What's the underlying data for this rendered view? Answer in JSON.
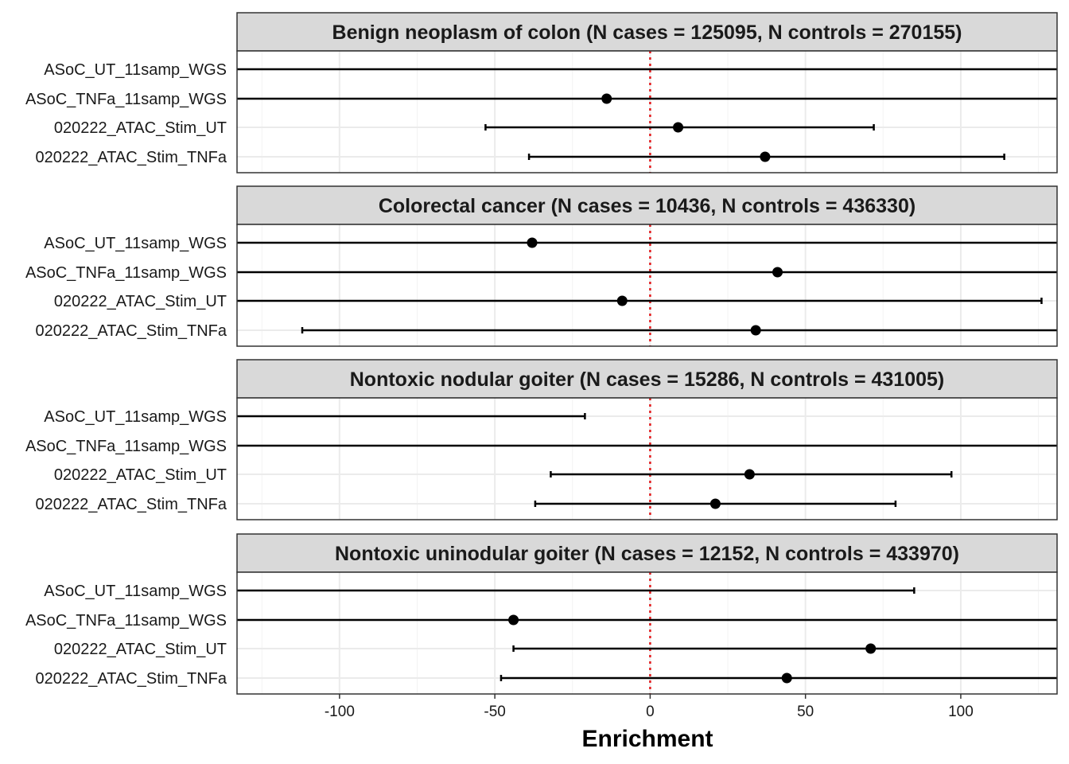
{
  "chart_data": {
    "type": "forest",
    "xlabel": "Enrichment",
    "xlim": [
      -133,
      131
    ],
    "xticks": [
      -100,
      -50,
      0,
      50,
      100
    ],
    "xtick_labels": [
      "-100",
      "-50",
      "0",
      "50",
      "100"
    ],
    "reference_line": 0,
    "rows": [
      "ASoC_UT_11samp_WGS",
      "ASoC_TNFa_11samp_WGS",
      "020222_ATAC_Stim_UT",
      "020222_ATAC_Stim_TNFa"
    ],
    "colors": {
      "points": "#000000",
      "reference": "#e31a1c",
      "strip": "#d9d9d9",
      "grid": "#ebebeb"
    },
    "panels": [
      {
        "title": "Benign neoplasm of colon (N cases = 125095, N controls = 270155)",
        "estimates": [
          {
            "label": "ASoC_UT_11samp_WGS",
            "est": null,
            "lo": null,
            "hi": null
          },
          {
            "label": "ASoC_TNFa_11samp_WGS",
            "est": -14,
            "lo": null,
            "hi": null
          },
          {
            "label": "020222_ATAC_Stim_UT",
            "est": 9,
            "lo": -53,
            "hi": 72
          },
          {
            "label": "020222_ATAC_Stim_TNFa",
            "est": 37,
            "lo": -39,
            "hi": 114
          }
        ]
      },
      {
        "title": "Colorectal cancer (N cases = 10436, N controls = 436330)",
        "estimates": [
          {
            "label": "ASoC_UT_11samp_WGS",
            "est": -38,
            "lo": null,
            "hi": null
          },
          {
            "label": "ASoC_TNFa_11samp_WGS",
            "est": 41,
            "lo": null,
            "hi": null
          },
          {
            "label": "020222_ATAC_Stim_UT",
            "est": -9,
            "lo": null,
            "hi": 126
          },
          {
            "label": "020222_ATAC_Stim_TNFa",
            "est": 34,
            "lo": -112,
            "hi": null
          }
        ]
      },
      {
        "title": "Nontoxic nodular goiter (N cases = 15286, N controls = 431005)",
        "estimates": [
          {
            "label": "ASoC_UT_11samp_WGS",
            "est": null,
            "lo": null,
            "hi": -21
          },
          {
            "label": "ASoC_TNFa_11samp_WGS",
            "est": null,
            "lo": null,
            "hi": null
          },
          {
            "label": "020222_ATAC_Stim_UT",
            "est": 32,
            "lo": -32,
            "hi": 97
          },
          {
            "label": "020222_ATAC_Stim_TNFa",
            "est": 21,
            "lo": -37,
            "hi": 79
          }
        ]
      },
      {
        "title": "Nontoxic uninodular goiter (N cases = 12152, N controls = 433970)",
        "estimates": [
          {
            "label": "ASoC_UT_11samp_WGS",
            "est": null,
            "lo": null,
            "hi": 85
          },
          {
            "label": "ASoC_TNFa_11samp_WGS",
            "est": -44,
            "lo": null,
            "hi": null
          },
          {
            "label": "020222_ATAC_Stim_UT",
            "est": 71,
            "lo": -44,
            "hi": null
          },
          {
            "label": "020222_ATAC_Stim_TNFa",
            "est": 44,
            "lo": -48,
            "hi": null
          }
        ]
      }
    ]
  }
}
